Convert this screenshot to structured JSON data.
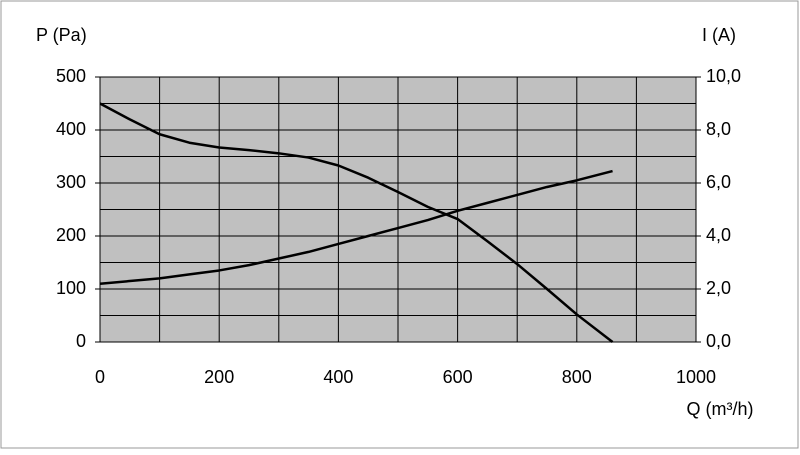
{
  "chart_data": {
    "type": "line",
    "ylabel": "P (Pa)",
    "y2label": "I (A)",
    "xlabel": "Q (m³/h)",
    "x": [
      0,
      50,
      100,
      150,
      200,
      250,
      300,
      350,
      400,
      450,
      500,
      550,
      600,
      650,
      700,
      750,
      800,
      860
    ],
    "series": [
      {
        "name": "P",
        "color": "#000000",
        "values": [
          450,
          420,
          392,
          376,
          367,
          362,
          356,
          348,
          333,
          310,
          283,
          255,
          232,
          190,
          147,
          100,
          52,
          0
        ]
      },
      {
        "name": "I",
        "color": "#000000",
        "axis": "y2",
        "values": [
          2.2,
          2.3,
          2.4,
          2.55,
          2.7,
          2.9,
          3.15,
          3.4,
          3.7,
          4.0,
          4.3,
          4.6,
          4.95,
          5.25,
          5.55,
          5.85,
          6.1,
          6.45
        ]
      }
    ],
    "xlim": [
      0,
      1000
    ],
    "xticks": [
      0,
      200,
      400,
      600,
      800,
      1000
    ],
    "xminor": [
      100,
      300,
      500,
      700,
      900
    ],
    "ylim": [
      0,
      500
    ],
    "yticks": [
      0,
      100,
      200,
      300,
      400,
      500
    ],
    "yminor": [
      50,
      150,
      250,
      350,
      450
    ],
    "y2lim": [
      0,
      10
    ],
    "y2ticks": [
      {
        "value": 0,
        "label": "0,0"
      },
      {
        "value": 2,
        "label": "2,0"
      },
      {
        "value": 4,
        "label": "4,0"
      },
      {
        "value": 6,
        "label": "6,0"
      },
      {
        "value": 8,
        "label": "8,0"
      },
      {
        "value": 10,
        "label": "10,0"
      }
    ],
    "grid": true,
    "plot_background": "#c0c0c0"
  }
}
